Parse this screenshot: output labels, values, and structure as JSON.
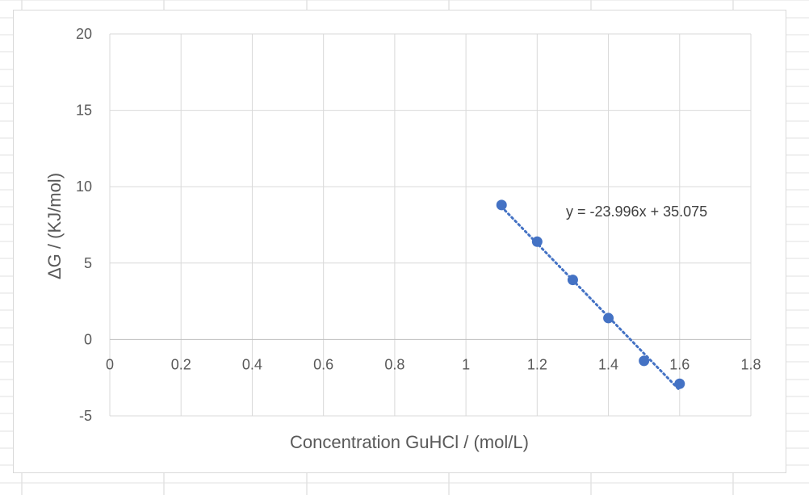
{
  "chart_data": {
    "type": "scatter",
    "title": "",
    "xlabel": "Concentration GuHCl / (mol/L)",
    "ylabel": "ΔG / (KJ/mol)",
    "xlim": [
      0,
      1.8
    ],
    "ylim": [
      -5,
      20
    ],
    "x_ticks": [
      "0",
      "0.2",
      "0.4",
      "0.6",
      "0.8",
      "1",
      "1.2",
      "1.4",
      "1.6",
      "1.8"
    ],
    "y_ticks": [
      "20",
      "15",
      "10",
      "5",
      "0",
      "-5"
    ],
    "grid": true,
    "legend": "none",
    "series": [
      {
        "color": "#4472c4",
        "x": [
          1.1,
          1.2,
          1.3,
          1.4,
          1.5,
          1.6
        ],
        "y": [
          8.8,
          6.4,
          3.9,
          1.4,
          -1.4,
          -2.9
        ]
      }
    ],
    "trendline": {
      "type": "linear",
      "style": "dotted",
      "color": "#4472c4",
      "slope": -23.996,
      "intercept": 35.075,
      "x_range": [
        1.1,
        1.6
      ],
      "equation_label": "y = -23.996x + 35.075"
    }
  }
}
